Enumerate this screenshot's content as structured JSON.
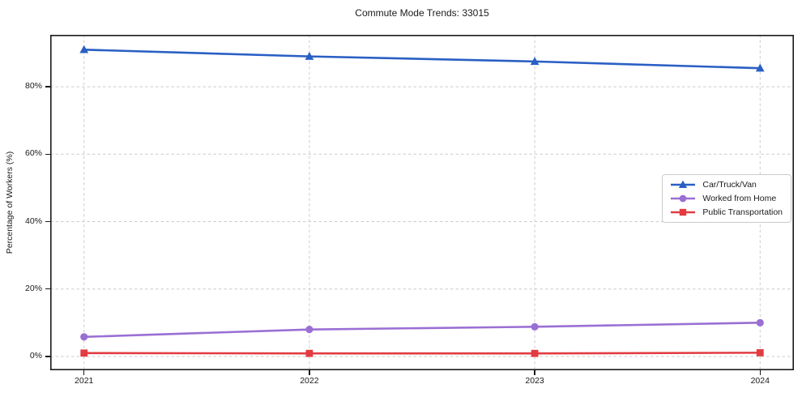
{
  "chart_data": {
    "type": "line",
    "title": "Commute Mode Trends: 33015",
    "xlabel": "",
    "ylabel": "Percentage of Workers (%)",
    "x": [
      2021,
      2022,
      2023,
      2024
    ],
    "series": [
      {
        "name": "Car/Truck/Van",
        "values": [
          91.0,
          89.0,
          87.5,
          85.5
        ],
        "color": "#2a5fc4",
        "marker": "triangle"
      },
      {
        "name": "Worked from Home",
        "values": [
          5.8,
          8.0,
          8.8,
          10.0
        ],
        "color": "#9a6fd4",
        "marker": "circle"
      },
      {
        "name": "Public Transportation",
        "values": [
          1.0,
          0.9,
          0.9,
          1.1
        ],
        "color": "#e23b41",
        "marker": "square"
      }
    ],
    "yticks": [
      0,
      20,
      40,
      60,
      80
    ],
    "ytick_labels": [
      "0%",
      "20%",
      "40%",
      "60%",
      "80%"
    ],
    "xtick_labels": [
      "2021",
      "2022",
      "2023",
      "2024"
    ],
    "ylim": [
      -4.1,
      95.4
    ],
    "xlim": [
      2020.85,
      2024.15
    ],
    "grid": true,
    "grid_color": "#cccccc",
    "axis_color": "#1a1a1a",
    "legend_position": "center right"
  }
}
